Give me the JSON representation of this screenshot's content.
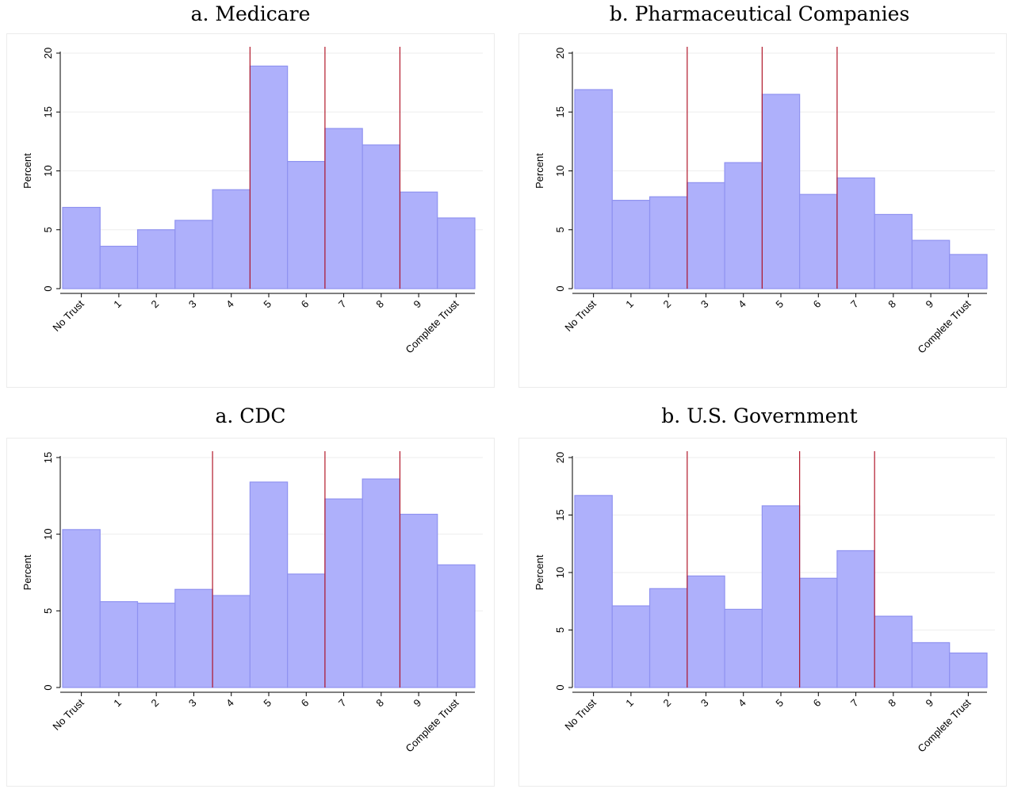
{
  "chart_data": [
    {
      "type": "bar",
      "title": "a. Medicare",
      "ylabel": "Percent",
      "ylim": [
        0,
        20
      ],
      "yticks": [
        "0",
        "5",
        "10",
        "15",
        "20"
      ],
      "categories": [
        "No Trust",
        "1",
        "2",
        "3",
        "4",
        "5",
        "6",
        "7",
        "8",
        "9",
        "Complete Trust"
      ],
      "values": [
        6.9,
        3.6,
        5.0,
        5.8,
        8.4,
        18.9,
        10.8,
        13.6,
        12.2,
        8.2,
        6.0
      ],
      "reference_lines": [
        4.5,
        6.5,
        8.5
      ],
      "bar_color": "#aeb0fb",
      "bar_edge_color": "#8f92f0",
      "line_color": "#b2182b",
      "grid": true
    },
    {
      "type": "bar",
      "title": "b. Pharmaceutical Companies",
      "ylabel": "Percent",
      "ylim": [
        0,
        20
      ],
      "yticks": [
        "0",
        "5",
        "10",
        "15",
        "20"
      ],
      "categories": [
        "No Trust",
        "1",
        "2",
        "3",
        "4",
        "5",
        "6",
        "7",
        "8",
        "9",
        "Complete Trust"
      ],
      "values": [
        16.9,
        7.5,
        7.8,
        9.0,
        10.7,
        16.5,
        8.0,
        9.4,
        6.3,
        4.1,
        2.9
      ],
      "reference_lines": [
        2.5,
        4.5,
        6.5
      ],
      "bar_color": "#aeb0fb",
      "bar_edge_color": "#8f92f0",
      "line_color": "#b2182b",
      "grid": true
    },
    {
      "type": "bar",
      "title": "a. CDC",
      "ylabel": "Percent",
      "ylim": [
        0,
        15
      ],
      "yticks": [
        "0",
        "5",
        "10",
        "15"
      ],
      "categories": [
        "No Trust",
        "1",
        "2",
        "3",
        "4",
        "5",
        "6",
        "7",
        "8",
        "9",
        "Complete Trust"
      ],
      "values": [
        10.3,
        5.6,
        5.5,
        6.4,
        6.0,
        13.4,
        7.4,
        12.3,
        13.6,
        11.3,
        8.0
      ],
      "reference_lines": [
        3.5,
        6.5,
        8.5
      ],
      "bar_color": "#aeb0fb",
      "bar_edge_color": "#8f92f0",
      "line_color": "#b2182b",
      "grid": true
    },
    {
      "type": "bar",
      "title": "b. U.S. Government",
      "ylabel": "Percent",
      "ylim": [
        0,
        20
      ],
      "yticks": [
        "0",
        "5",
        "10",
        "15",
        "20"
      ],
      "categories": [
        "No Trust",
        "1",
        "2",
        "3",
        "4",
        "5",
        "6",
        "7",
        "8",
        "9",
        "Complete Trust"
      ],
      "values": [
        16.7,
        7.1,
        8.6,
        9.7,
        6.8,
        15.8,
        9.5,
        11.9,
        6.2,
        3.9,
        3.0
      ],
      "reference_lines": [
        2.5,
        5.5,
        7.5
      ],
      "bar_color": "#aeb0fb",
      "bar_edge_color": "#8f92f0",
      "line_color": "#b2182b",
      "grid": true
    }
  ]
}
